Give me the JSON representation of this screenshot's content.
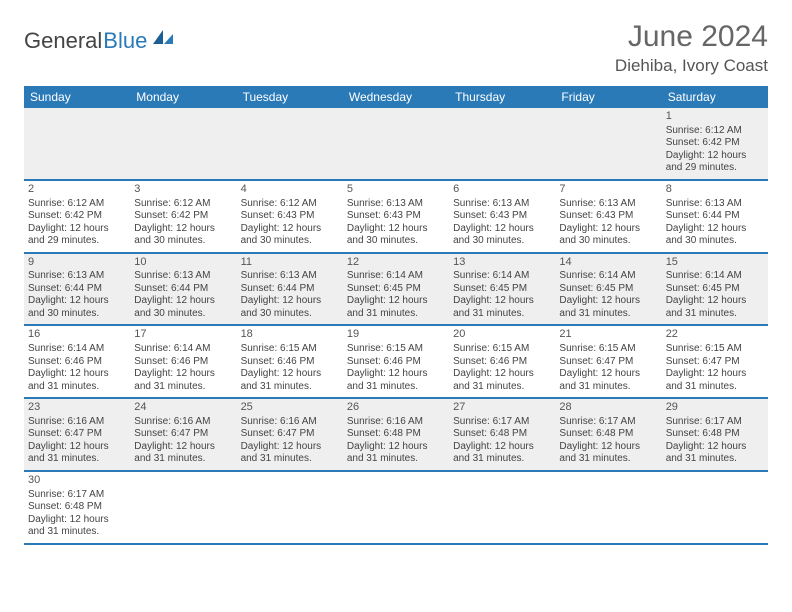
{
  "brand": {
    "general": "General",
    "blue": "Blue"
  },
  "title": "June 2024",
  "location": "Diehiba, Ivory Coast",
  "colors": {
    "header_bg": "#2a7ab8",
    "header_text": "#ffffff",
    "row_odd_bg": "#efefef",
    "row_even_bg": "#ffffff",
    "row_border": "#2a7ab8",
    "title_color": "#666666",
    "text_color": "#444444"
  },
  "weekdays": [
    "Sunday",
    "Monday",
    "Tuesday",
    "Wednesday",
    "Thursday",
    "Friday",
    "Saturday"
  ],
  "weeks": [
    [
      null,
      null,
      null,
      null,
      null,
      null,
      {
        "d": "1",
        "sr": "Sunrise: 6:12 AM",
        "ss": "Sunset: 6:42 PM",
        "dl1": "Daylight: 12 hours",
        "dl2": "and 29 minutes."
      }
    ],
    [
      {
        "d": "2",
        "sr": "Sunrise: 6:12 AM",
        "ss": "Sunset: 6:42 PM",
        "dl1": "Daylight: 12 hours",
        "dl2": "and 29 minutes."
      },
      {
        "d": "3",
        "sr": "Sunrise: 6:12 AM",
        "ss": "Sunset: 6:42 PM",
        "dl1": "Daylight: 12 hours",
        "dl2": "and 30 minutes."
      },
      {
        "d": "4",
        "sr": "Sunrise: 6:12 AM",
        "ss": "Sunset: 6:43 PM",
        "dl1": "Daylight: 12 hours",
        "dl2": "and 30 minutes."
      },
      {
        "d": "5",
        "sr": "Sunrise: 6:13 AM",
        "ss": "Sunset: 6:43 PM",
        "dl1": "Daylight: 12 hours",
        "dl2": "and 30 minutes."
      },
      {
        "d": "6",
        "sr": "Sunrise: 6:13 AM",
        "ss": "Sunset: 6:43 PM",
        "dl1": "Daylight: 12 hours",
        "dl2": "and 30 minutes."
      },
      {
        "d": "7",
        "sr": "Sunrise: 6:13 AM",
        "ss": "Sunset: 6:43 PM",
        "dl1": "Daylight: 12 hours",
        "dl2": "and 30 minutes."
      },
      {
        "d": "8",
        "sr": "Sunrise: 6:13 AM",
        "ss": "Sunset: 6:44 PM",
        "dl1": "Daylight: 12 hours",
        "dl2": "and 30 minutes."
      }
    ],
    [
      {
        "d": "9",
        "sr": "Sunrise: 6:13 AM",
        "ss": "Sunset: 6:44 PM",
        "dl1": "Daylight: 12 hours",
        "dl2": "and 30 minutes."
      },
      {
        "d": "10",
        "sr": "Sunrise: 6:13 AM",
        "ss": "Sunset: 6:44 PM",
        "dl1": "Daylight: 12 hours",
        "dl2": "and 30 minutes."
      },
      {
        "d": "11",
        "sr": "Sunrise: 6:13 AM",
        "ss": "Sunset: 6:44 PM",
        "dl1": "Daylight: 12 hours",
        "dl2": "and 30 minutes."
      },
      {
        "d": "12",
        "sr": "Sunrise: 6:14 AM",
        "ss": "Sunset: 6:45 PM",
        "dl1": "Daylight: 12 hours",
        "dl2": "and 31 minutes."
      },
      {
        "d": "13",
        "sr": "Sunrise: 6:14 AM",
        "ss": "Sunset: 6:45 PM",
        "dl1": "Daylight: 12 hours",
        "dl2": "and 31 minutes."
      },
      {
        "d": "14",
        "sr": "Sunrise: 6:14 AM",
        "ss": "Sunset: 6:45 PM",
        "dl1": "Daylight: 12 hours",
        "dl2": "and 31 minutes."
      },
      {
        "d": "15",
        "sr": "Sunrise: 6:14 AM",
        "ss": "Sunset: 6:45 PM",
        "dl1": "Daylight: 12 hours",
        "dl2": "and 31 minutes."
      }
    ],
    [
      {
        "d": "16",
        "sr": "Sunrise: 6:14 AM",
        "ss": "Sunset: 6:46 PM",
        "dl1": "Daylight: 12 hours",
        "dl2": "and 31 minutes."
      },
      {
        "d": "17",
        "sr": "Sunrise: 6:14 AM",
        "ss": "Sunset: 6:46 PM",
        "dl1": "Daylight: 12 hours",
        "dl2": "and 31 minutes."
      },
      {
        "d": "18",
        "sr": "Sunrise: 6:15 AM",
        "ss": "Sunset: 6:46 PM",
        "dl1": "Daylight: 12 hours",
        "dl2": "and 31 minutes."
      },
      {
        "d": "19",
        "sr": "Sunrise: 6:15 AM",
        "ss": "Sunset: 6:46 PM",
        "dl1": "Daylight: 12 hours",
        "dl2": "and 31 minutes."
      },
      {
        "d": "20",
        "sr": "Sunrise: 6:15 AM",
        "ss": "Sunset: 6:46 PM",
        "dl1": "Daylight: 12 hours",
        "dl2": "and 31 minutes."
      },
      {
        "d": "21",
        "sr": "Sunrise: 6:15 AM",
        "ss": "Sunset: 6:47 PM",
        "dl1": "Daylight: 12 hours",
        "dl2": "and 31 minutes."
      },
      {
        "d": "22",
        "sr": "Sunrise: 6:15 AM",
        "ss": "Sunset: 6:47 PM",
        "dl1": "Daylight: 12 hours",
        "dl2": "and 31 minutes."
      }
    ],
    [
      {
        "d": "23",
        "sr": "Sunrise: 6:16 AM",
        "ss": "Sunset: 6:47 PM",
        "dl1": "Daylight: 12 hours",
        "dl2": "and 31 minutes."
      },
      {
        "d": "24",
        "sr": "Sunrise: 6:16 AM",
        "ss": "Sunset: 6:47 PM",
        "dl1": "Daylight: 12 hours",
        "dl2": "and 31 minutes."
      },
      {
        "d": "25",
        "sr": "Sunrise: 6:16 AM",
        "ss": "Sunset: 6:47 PM",
        "dl1": "Daylight: 12 hours",
        "dl2": "and 31 minutes."
      },
      {
        "d": "26",
        "sr": "Sunrise: 6:16 AM",
        "ss": "Sunset: 6:48 PM",
        "dl1": "Daylight: 12 hours",
        "dl2": "and 31 minutes."
      },
      {
        "d": "27",
        "sr": "Sunrise: 6:17 AM",
        "ss": "Sunset: 6:48 PM",
        "dl1": "Daylight: 12 hours",
        "dl2": "and 31 minutes."
      },
      {
        "d": "28",
        "sr": "Sunrise: 6:17 AM",
        "ss": "Sunset: 6:48 PM",
        "dl1": "Daylight: 12 hours",
        "dl2": "and 31 minutes."
      },
      {
        "d": "29",
        "sr": "Sunrise: 6:17 AM",
        "ss": "Sunset: 6:48 PM",
        "dl1": "Daylight: 12 hours",
        "dl2": "and 31 minutes."
      }
    ],
    [
      {
        "d": "30",
        "sr": "Sunrise: 6:17 AM",
        "ss": "Sunset: 6:48 PM",
        "dl1": "Daylight: 12 hours",
        "dl2": "and 31 minutes."
      },
      null,
      null,
      null,
      null,
      null,
      null
    ]
  ]
}
